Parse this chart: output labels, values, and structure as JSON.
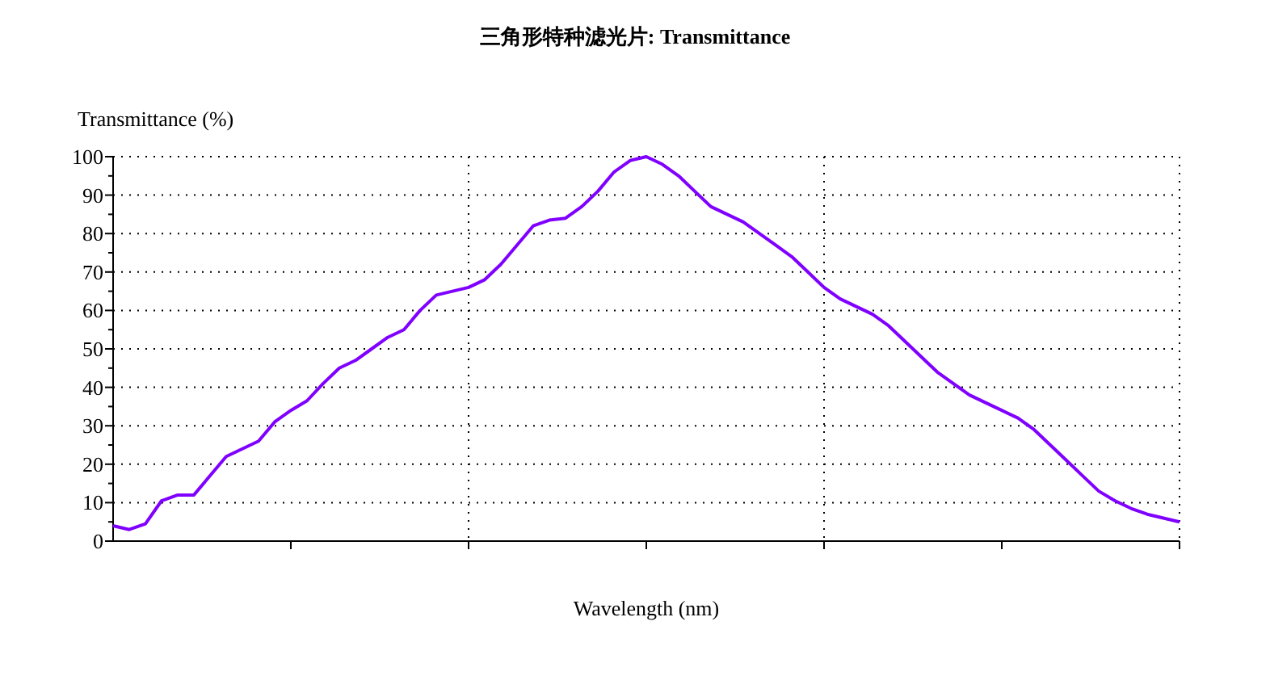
{
  "chart_data": {
    "type": "line",
    "title": "三角形特种滤光片: Transmittance",
    "xlabel": "Wavelength (nm)",
    "ylabel": "Transmittance (%)",
    "categories": [
      null,
      null,
      null,
      null,
      null,
      null,
      null,
      null,
      null,
      null,
      null,
      null,
      null,
      null,
      null,
      null,
      null,
      null,
      null,
      null,
      null,
      null,
      null,
      null,
      null,
      null,
      null,
      null,
      null,
      null,
      null,
      null,
      null,
      null,
      null,
      null,
      null,
      null,
      null,
      null,
      null,
      null,
      null,
      null,
      null,
      null,
      null,
      null,
      null,
      null,
      null,
      null,
      null,
      null,
      null,
      null,
      null,
      null,
      null,
      null,
      null,
      null,
      null,
      null,
      null,
      null,
      null
    ],
    "series": [
      {
        "color": "#8000ff",
        "values": [
          4,
          3,
          4.5,
          10.5,
          12,
          12,
          17,
          22,
          24,
          26,
          31,
          34,
          36.5,
          41,
          45,
          47,
          50,
          53,
          55,
          60,
          64,
          65,
          66,
          68,
          72,
          77,
          82,
          83.5,
          84,
          87,
          91,
          96,
          99,
          100,
          98,
          95,
          91,
          87,
          85,
          83,
          80,
          77,
          74,
          70,
          66,
          63,
          61,
          59,
          56,
          52,
          48,
          44,
          41,
          38,
          36,
          34,
          32,
          29,
          25,
          21,
          17,
          13,
          10.5,
          8.5,
          7,
          6,
          5
        ]
      }
    ],
    "ylim": [
      0,
      100
    ],
    "yticks": [
      0,
      10,
      20,
      30,
      40,
      50,
      60,
      70,
      80,
      90,
      100
    ],
    "grid": true,
    "tick_labels": "y"
  }
}
